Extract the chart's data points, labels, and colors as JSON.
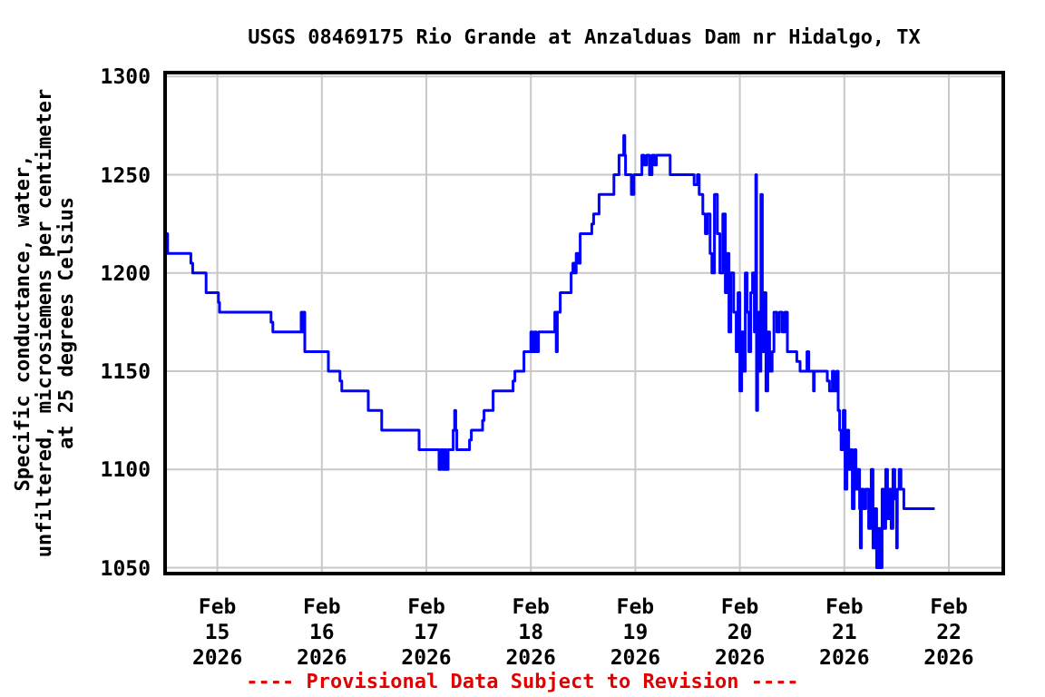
{
  "chart_data": {
    "type": "step",
    "title": "USGS 08469175 Rio Grande at Anzalduas Dam nr Hidalgo, TX",
    "ylabel": "Specific conductance, water,\nunfiltered, microsiemens per centimeter\nat 25 degrees Celsius",
    "annotations": [
      "---- Provisional Data Subject to Revision ----"
    ],
    "xlim": [
      "2026-02-14T12:00",
      "2026-02-22T12:30"
    ],
    "xticks": [
      {
        "value": "2026-02-15T00:00",
        "label": "Feb\n15\n2026"
      },
      {
        "value": "2026-02-16T00:00",
        "label": "Feb\n16\n2026"
      },
      {
        "value": "2026-02-17T00:00",
        "label": "Feb\n17\n2026"
      },
      {
        "value": "2026-02-18T00:00",
        "label": "Feb\n18\n2026"
      },
      {
        "value": "2026-02-19T00:00",
        "label": "Feb\n19\n2026"
      },
      {
        "value": "2026-02-20T00:00",
        "label": "Feb\n20\n2026"
      },
      {
        "value": "2026-02-21T00:00",
        "label": "Feb\n21\n2026"
      },
      {
        "value": "2026-02-22T00:00",
        "label": "Feb\n22\n2026"
      }
    ],
    "ylim": [
      1047,
      1302
    ],
    "yticks": [
      1050,
      1100,
      1150,
      1200,
      1250,
      1300
    ],
    "grid": true,
    "line_style": "solid",
    "series": [
      {
        "color": "#0000ff",
        "x": [
          "2026-02-14T12:05",
          "2026-02-14T12:35",
          "2026-02-14T17:55",
          "2026-02-14T18:20",
          "2026-02-14T21:25",
          "2026-02-15T00:15",
          "2026-02-15T00:30",
          "2026-02-15T12:20",
          "2026-02-15T12:45",
          "2026-02-15T19:15",
          "2026-02-15T19:30",
          "2026-02-15T19:45",
          "2026-02-15T20:05",
          "2026-02-16T01:30",
          "2026-02-16T04:10",
          "2026-02-16T04:35",
          "2026-02-16T10:40",
          "2026-02-16T13:45",
          "2026-02-16T22:20",
          "2026-02-17T02:55",
          "2026-02-17T03:20",
          "2026-02-17T03:50",
          "2026-02-17T04:10",
          "2026-02-17T04:35",
          "2026-02-17T05:00",
          "2026-02-17T06:10",
          "2026-02-17T06:30",
          "2026-02-17T06:45",
          "2026-02-17T07:00",
          "2026-02-17T09:55",
          "2026-02-17T10:20",
          "2026-02-17T12:55",
          "2026-02-17T13:15",
          "2026-02-17T15:20",
          "2026-02-17T19:55",
          "2026-02-17T20:20",
          "2026-02-17T22:25",
          "2026-02-18T00:00",
          "2026-02-18T00:25",
          "2026-02-18T00:50",
          "2026-02-18T01:15",
          "2026-02-18T01:45",
          "2026-02-18T05:30",
          "2026-02-18T05:50",
          "2026-02-18T06:05",
          "2026-02-18T06:45",
          "2026-02-18T09:15",
          "2026-02-18T09:40",
          "2026-02-18T10:00",
          "2026-02-18T10:25",
          "2026-02-18T11:00",
          "2026-02-18T11:20",
          "2026-02-18T14:00",
          "2026-02-18T14:25",
          "2026-02-18T15:40",
          "2026-02-18T19:05",
          "2026-02-18T20:15",
          "2026-02-18T21:20",
          "2026-02-18T21:35",
          "2026-02-18T21:45",
          "2026-02-18T23:05",
          "2026-02-18T23:40",
          "2026-02-19T01:30",
          "2026-02-19T02:00",
          "2026-02-19T02:35",
          "2026-02-19T03:15",
          "2026-02-19T03:50",
          "2026-02-19T04:25",
          "2026-02-19T04:50",
          "2026-02-19T08:00",
          "2026-02-19T13:30",
          "2026-02-19T14:15",
          "2026-02-19T14:40",
          "2026-02-19T15:30",
          "2026-02-19T16:05",
          "2026-02-19T16:30",
          "2026-02-19T17:10",
          "2026-02-19T17:35",
          "2026-02-19T18:10",
          "2026-02-19T18:50",
          "2026-02-19T19:25",
          "2026-02-19T20:05",
          "2026-02-19T20:40",
          "2026-02-19T21:05",
          "2026-02-19T21:30",
          "2026-02-19T21:55",
          "2026-02-19T22:35",
          "2026-02-19T23:10",
          "2026-02-19T23:35",
          "2026-02-20T00:00",
          "2026-02-20T00:25",
          "2026-02-20T00:50",
          "2026-02-20T01:15",
          "2026-02-20T01:40",
          "2026-02-20T02:05",
          "2026-02-20T02:30",
          "2026-02-20T02:55",
          "2026-02-20T03:20",
          "2026-02-20T03:40",
          "2026-02-20T03:50",
          "2026-02-20T04:05",
          "2026-02-20T04:30",
          "2026-02-20T04:50",
          "2026-02-20T05:10",
          "2026-02-20T05:35",
          "2026-02-20T06:00",
          "2026-02-20T06:25",
          "2026-02-20T06:50",
          "2026-02-20T07:25",
          "2026-02-20T07:50",
          "2026-02-20T08:30",
          "2026-02-20T09:05",
          "2026-02-20T09:45",
          "2026-02-20T10:20",
          "2026-02-20T10:55",
          "2026-02-20T13:05",
          "2026-02-20T13:50",
          "2026-02-20T15:25",
          "2026-02-20T15:50",
          "2026-02-20T16:55",
          "2026-02-20T17:05",
          "2026-02-20T20:05",
          "2026-02-20T20:35",
          "2026-02-20T21:15",
          "2026-02-20T21:40",
          "2026-02-20T22:15",
          "2026-02-20T22:35",
          "2026-02-20T22:55",
          "2026-02-20T23:15",
          "2026-02-20T23:45",
          "2026-02-21T00:10",
          "2026-02-21T00:35",
          "2026-02-21T01:00",
          "2026-02-21T01:25",
          "2026-02-21T01:50",
          "2026-02-21T02:15",
          "2026-02-21T02:40",
          "2026-02-21T03:05",
          "2026-02-21T03:30",
          "2026-02-21T03:40",
          "2026-02-21T03:55",
          "2026-02-21T04:25",
          "2026-02-21T04:55",
          "2026-02-21T05:35",
          "2026-02-21T06:10",
          "2026-02-21T06:35",
          "2026-02-21T07:00",
          "2026-02-21T07:25",
          "2026-02-21T07:50",
          "2026-02-21T08:15",
          "2026-02-21T08:40",
          "2026-02-21T09:05",
          "2026-02-21T09:30",
          "2026-02-21T09:55",
          "2026-02-21T10:20",
          "2026-02-21T10:45",
          "2026-02-21T11:10",
          "2026-02-21T11:35",
          "2026-02-21T12:00",
          "2026-02-21T12:10",
          "2026-02-21T12:35",
          "2026-02-21T13:00",
          "2026-02-21T13:40",
          "2026-02-21T20:45"
        ],
        "values": [
          1220,
          1210,
          1205,
          1200,
          1190,
          1185,
          1180,
          1175,
          1170,
          1180,
          1170,
          1180,
          1160,
          1150,
          1145,
          1140,
          1130,
          1120,
          1110,
          1100,
          1110,
          1100,
          1110,
          1100,
          1110,
          1120,
          1130,
          1120,
          1110,
          1115,
          1120,
          1125,
          1130,
          1140,
          1145,
          1150,
          1160,
          1170,
          1160,
          1170,
          1160,
          1170,
          1180,
          1160,
          1180,
          1190,
          1200,
          1205,
          1200,
          1210,
          1205,
          1220,
          1225,
          1230,
          1240,
          1250,
          1260,
          1270,
          1260,
          1250,
          1240,
          1250,
          1260,
          1255,
          1260,
          1250,
          1260,
          1255,
          1260,
          1250,
          1245,
          1250,
          1240,
          1230,
          1220,
          1230,
          1210,
          1200,
          1240,
          1220,
          1200,
          1230,
          1190,
          1210,
          1170,
          1200,
          1180,
          1160,
          1190,
          1140,
          1170,
          1150,
          1200,
          1180,
          1160,
          1190,
          1200,
          1170,
          1250,
          1130,
          1180,
          1150,
          1240,
          1160,
          1190,
          1140,
          1170,
          1150,
          1160,
          1180,
          1170,
          1180,
          1170,
          1180,
          1160,
          1155,
          1150,
          1160,
          1150,
          1140,
          1150,
          1145,
          1140,
          1150,
          1140,
          1150,
          1130,
          1120,
          1110,
          1130,
          1090,
          1120,
          1100,
          1110,
          1080,
          1110,
          1090,
          1100,
          1080,
          1060,
          1090,
          1080,
          1090,
          1070,
          1100,
          1060,
          1080,
          1050,
          1070,
          1050,
          1090,
          1070,
          1100,
          1075,
          1090,
          1070,
          1100,
          1085,
          1060,
          1090,
          1100,
          1090,
          1080,
          1080
        ]
      }
    ]
  }
}
